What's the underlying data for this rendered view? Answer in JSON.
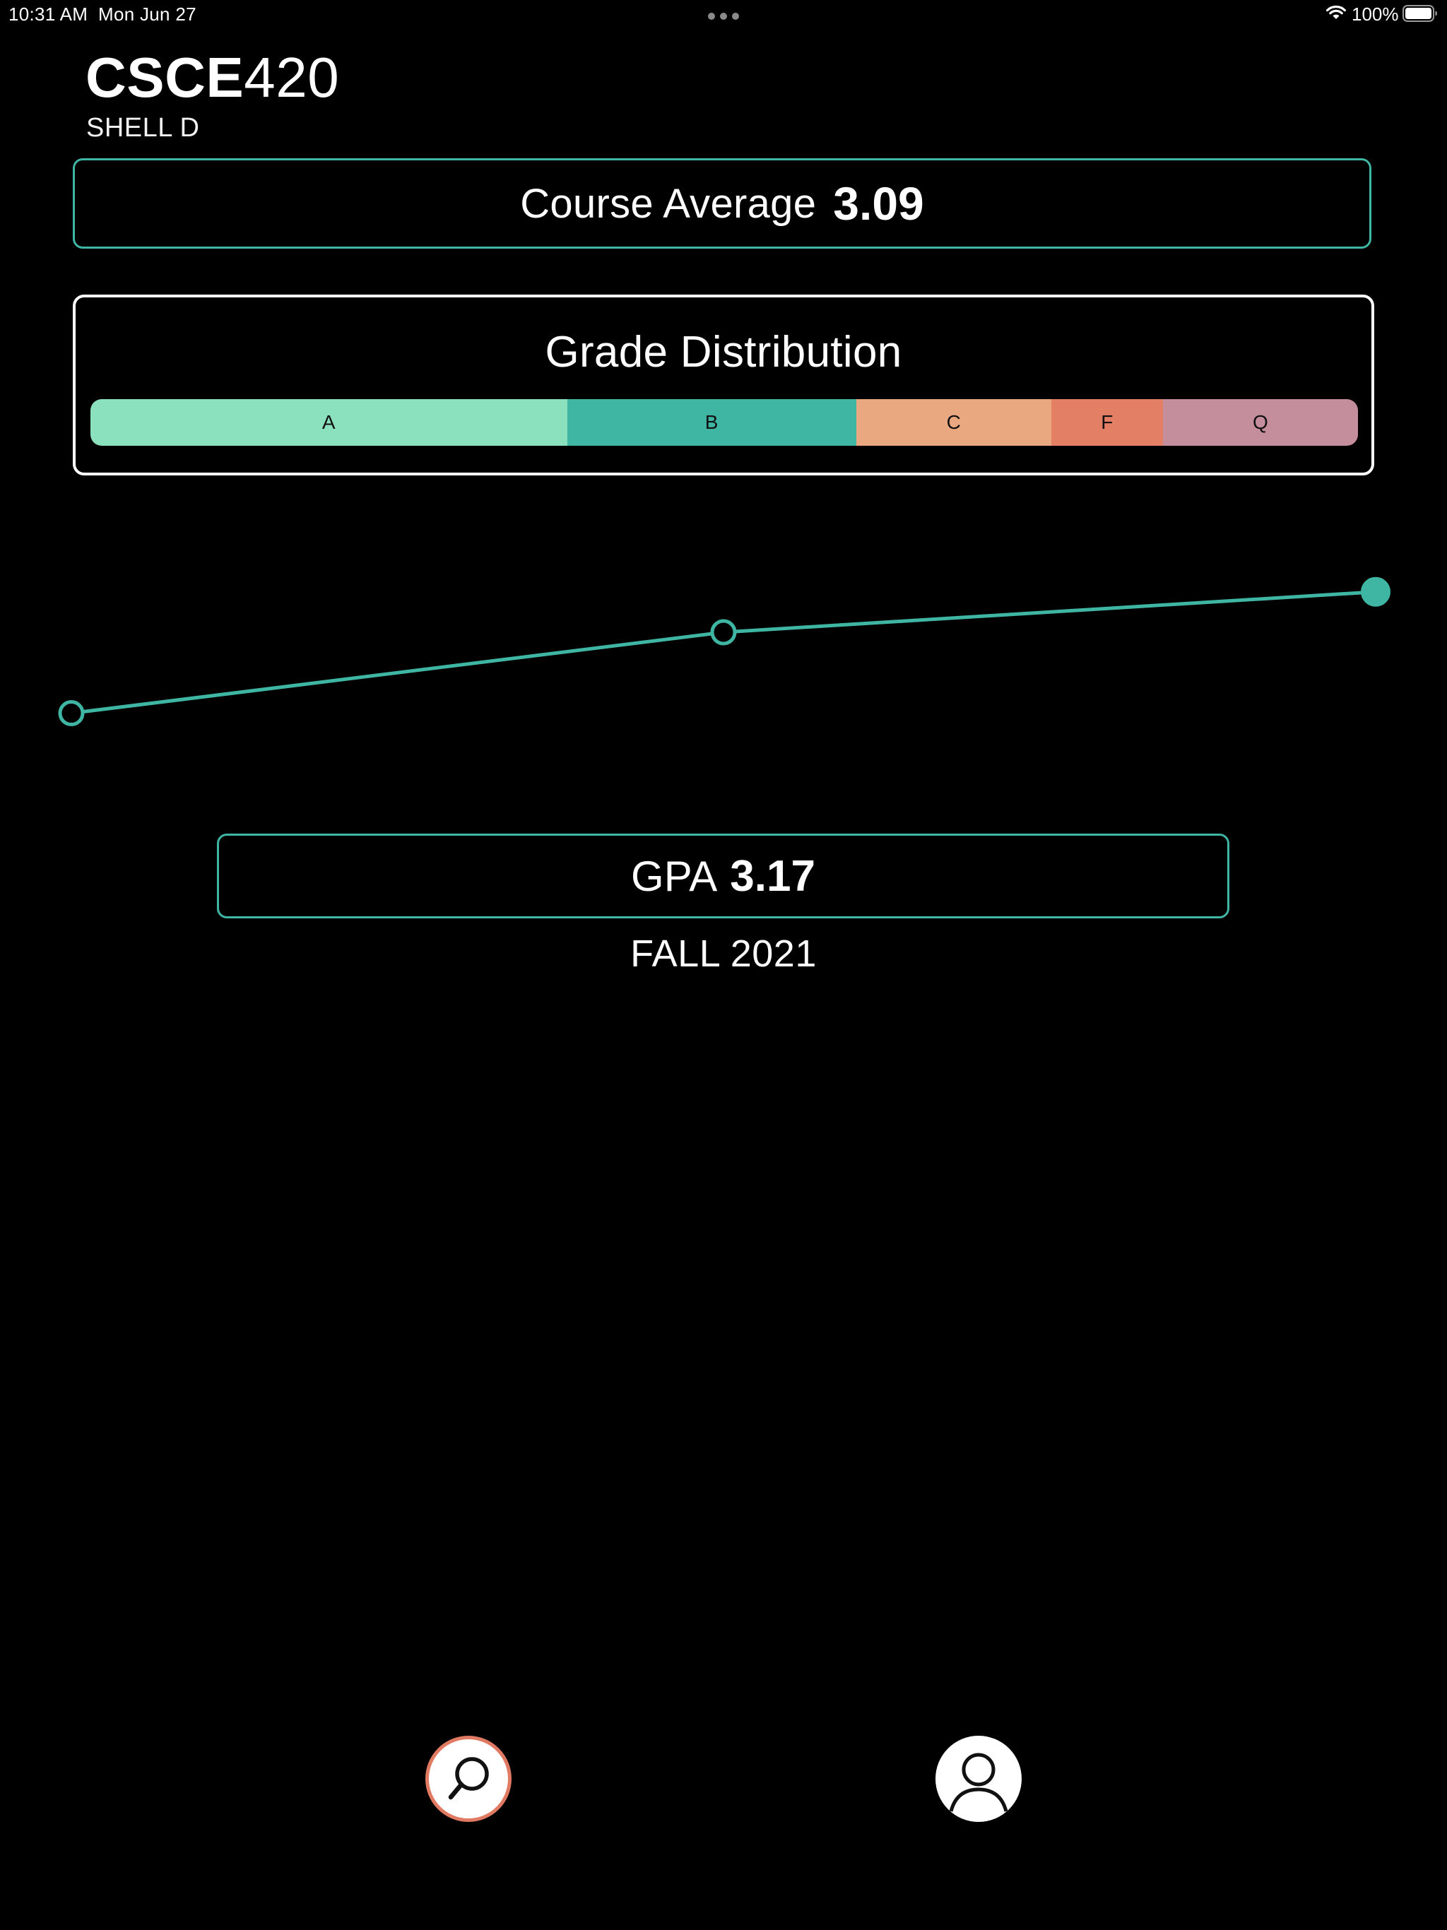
{
  "status_bar": {
    "time": "10:31 AM",
    "date": "Mon Jun 27",
    "battery": "100%"
  },
  "course": {
    "dept": "CSCE",
    "number": "420",
    "professor": "SHELL D"
  },
  "course_average": {
    "label": "Course Average",
    "value": "3.09"
  },
  "distribution": {
    "title": "Grade Distribution",
    "segments": [
      {
        "label": "A",
        "share": 0.376,
        "color": "#8be0be"
      },
      {
        "label": "B",
        "share": 0.228,
        "color": "#3fb5a3"
      },
      {
        "label": "C",
        "share": 0.154,
        "color": "#e9a87f"
      },
      {
        "label": "F",
        "share": 0.088,
        "color": "#e27f65"
      },
      {
        "label": "Q",
        "share": 0.154,
        "color": "#c58e9d"
      }
    ]
  },
  "gpa": {
    "label": "GPA",
    "value": "3.17",
    "semester": "FALL 2021"
  },
  "chart_data": {
    "type": "line",
    "series": [
      {
        "values": [
          2.9,
          3.08,
          3.17
        ]
      }
    ],
    "selected_index": 2,
    "line_color": "#3fb5a3",
    "ylim": [
      2.75,
      3.3
    ]
  },
  "icons": {
    "search": "magnifying-glass-icon",
    "profile": "person-icon"
  },
  "colors": {
    "accent": "#3fb5a3",
    "search_ring": "#e07a63",
    "background": "#000000"
  }
}
